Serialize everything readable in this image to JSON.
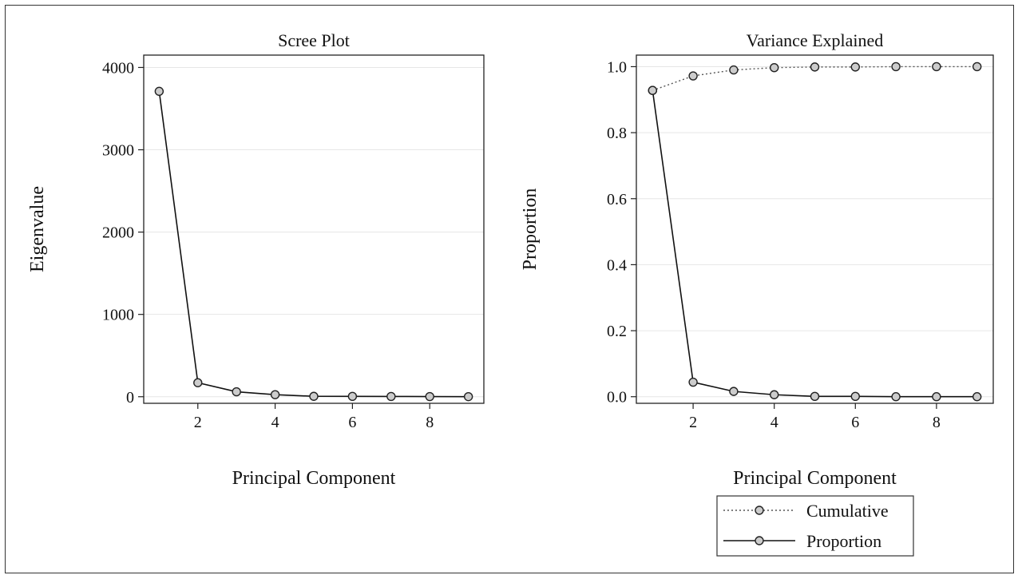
{
  "chart_data": [
    {
      "type": "line",
      "title": "Scree Plot",
      "xlabel": "Principal Component",
      "ylabel": "Eigenvalue",
      "x": [
        1,
        2,
        3,
        4,
        5,
        6,
        7,
        8,
        9
      ],
      "xticks": [
        "2",
        "4",
        "6",
        "8"
      ],
      "xtick_values": [
        2,
        4,
        6,
        8
      ],
      "xlim": [
        0.6,
        9.4
      ],
      "yticks": [
        "0",
        "1000",
        "2000",
        "3000",
        "4000"
      ],
      "ytick_values": [
        0,
        1000,
        2000,
        3000,
        4000
      ],
      "ylim": [
        -80,
        4150
      ],
      "grid": true,
      "series": [
        {
          "values": [
            3710,
            170,
            60,
            25,
            5,
            4,
            3,
            2,
            1
          ],
          "style": "solid",
          "marker": "circle"
        }
      ]
    },
    {
      "type": "line",
      "title": "Variance Explained",
      "xlabel": "Principal Component",
      "ylabel": "Proportion",
      "x": [
        1,
        2,
        3,
        4,
        5,
        6,
        7,
        8,
        9
      ],
      "xticks": [
        "2",
        "4",
        "6",
        "8"
      ],
      "xtick_values": [
        2,
        4,
        6,
        8
      ],
      "xlim": [
        0.6,
        9.4
      ],
      "yticks": [
        "0.0",
        "0.2",
        "0.4",
        "0.6",
        "0.8",
        "1.0"
      ],
      "ytick_values": [
        0.0,
        0.2,
        0.4,
        0.6,
        0.8,
        1.0
      ],
      "ylim": [
        -0.02,
        1.035
      ],
      "grid": true,
      "legend_position": "bottom-right, below plot",
      "series": [
        {
          "name": "Cumulative",
          "values": [
            0.928,
            0.972,
            0.99,
            0.997,
            0.999,
            0.999,
            1.0,
            1.0,
            1.0
          ],
          "style": "dotted",
          "marker": "circle"
        },
        {
          "name": "Proportion",
          "values": [
            0.928,
            0.044,
            0.016,
            0.006,
            0.001,
            0.001,
            0.0,
            0.0,
            0.0
          ],
          "style": "solid",
          "marker": "circle"
        }
      ]
    }
  ]
}
